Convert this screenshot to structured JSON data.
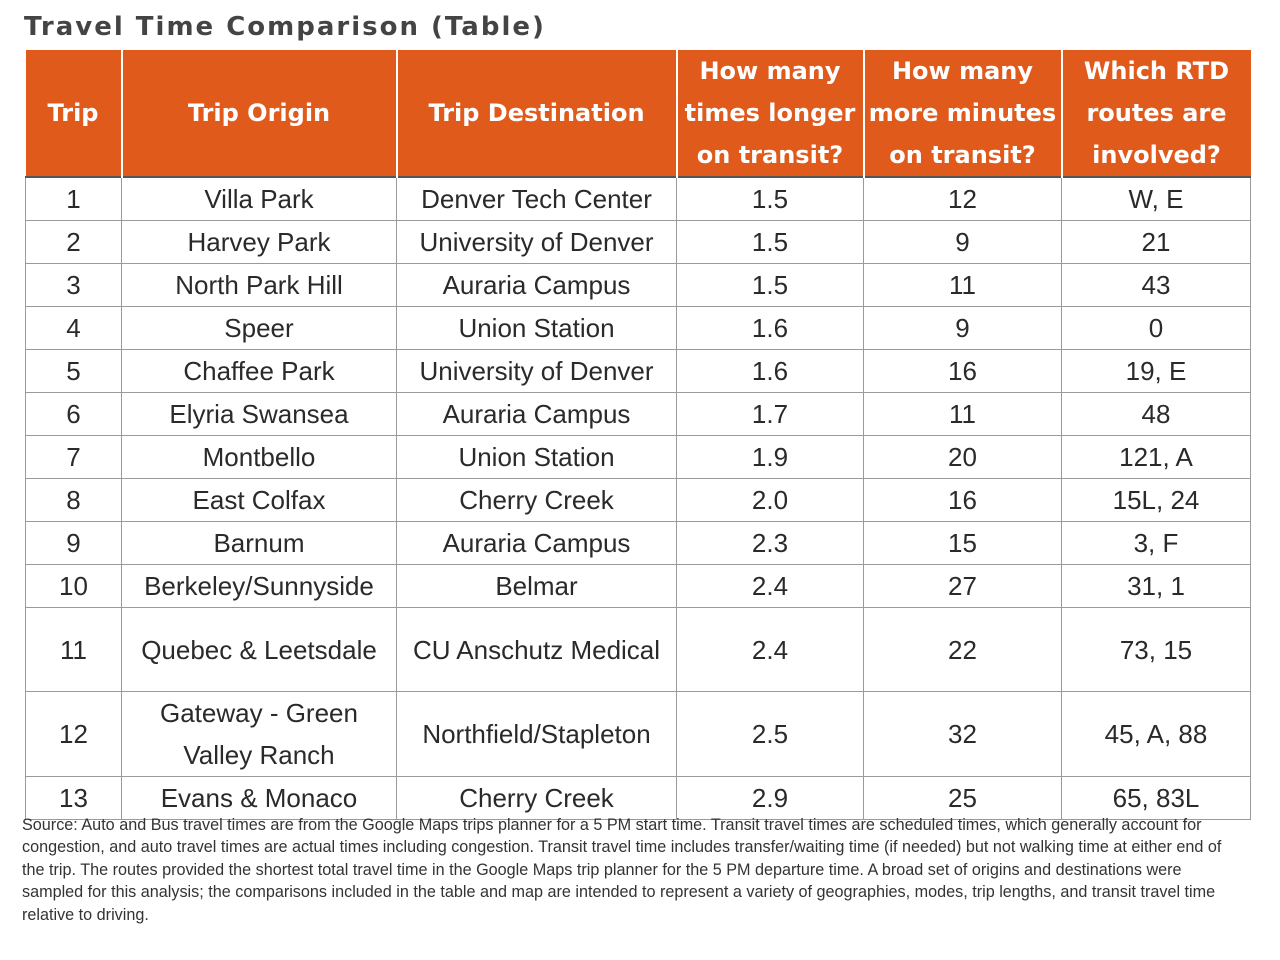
{
  "title": "Travel Time Comparison (Table)",
  "table": {
    "headers": [
      "Trip",
      "Trip Origin",
      "Trip Destination",
      "How many times longer on transit?",
      "How many more minutes on transit?",
      "Which RTD routes are involved?"
    ],
    "rows": [
      [
        "1",
        "Villa Park",
        "Denver Tech Center",
        "1.5",
        "12",
        "W, E"
      ],
      [
        "2",
        "Harvey Park",
        "University of Denver",
        "1.5",
        "9",
        "21"
      ],
      [
        "3",
        "North Park Hill",
        "Auraria Campus",
        "1.5",
        "11",
        "43"
      ],
      [
        "4",
        "Speer",
        "Union Station",
        "1.6",
        "9",
        "0"
      ],
      [
        "5",
        "Chaffee Park",
        "University of Denver",
        "1.6",
        "16",
        "19, E"
      ],
      [
        "6",
        "Elyria Swansea",
        "Auraria Campus",
        "1.7",
        "11",
        "48"
      ],
      [
        "7",
        "Montbello",
        "Union Station",
        "1.9",
        "20",
        "121, A"
      ],
      [
        "8",
        "East Colfax",
        "Cherry Creek",
        "2.0",
        "16",
        "15L, 24"
      ],
      [
        "9",
        "Barnum",
        "Auraria Campus",
        "2.3",
        "15",
        "3, F"
      ],
      [
        "10",
        "Berkeley/Sunnyside",
        "Belmar",
        "2.4",
        "27",
        "31, 1"
      ],
      [
        "11",
        "Quebec & Leetsdale",
        "CU Anschutz Medical",
        "2.4",
        "22",
        "73, 15"
      ],
      [
        "12",
        "Gateway - Green Valley Ranch",
        "Northfield/Stapleton",
        "2.5",
        "32",
        "45, A, 88"
      ],
      [
        "13",
        "Evans & Monaco",
        "Cherry Creek",
        "2.9",
        "25",
        "65, 83L"
      ]
    ]
  },
  "note": "Source: Auto and Bus travel times are from the Google Maps trips planner for a 5 PM start time. Transit travel times are scheduled times, which generally account for congestion, and auto travel times are actual times including congestion. Transit travel time includes transfer/waiting time (if needed) but not walking time at either end of the trip. The routes provided the shortest total travel time in the Google Maps trip planner for the 5 PM departure time. A broad set of origins and destinations were sampled for this analysis; the comparisons included in the table and map are intended to represent a variety of geographies, modes, trip lengths, and transit travel time relative to driving."
}
